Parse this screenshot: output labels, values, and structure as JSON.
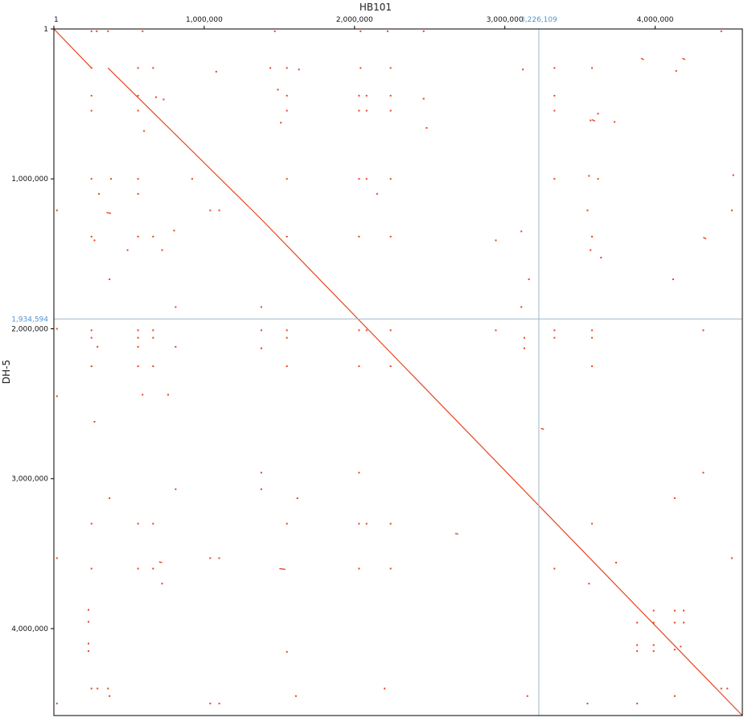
{
  "chart_data": {
    "type": "scatter",
    "subtype": "genome-dotplot",
    "xlabel": "HB101",
    "ylabel": "DH-5",
    "xlim": [
      1,
      4580000
    ],
    "ylim": [
      1,
      4580000
    ],
    "x_ticks": [
      {
        "value": 1,
        "label": "1"
      },
      {
        "value": 1000000,
        "label": "1,000,000"
      },
      {
        "value": 2000000,
        "label": "2,000,000"
      },
      {
        "value": 3000000,
        "label": "3,000,000"
      },
      {
        "value": 4000000,
        "label": "4,000,000"
      }
    ],
    "y_ticks": [
      {
        "value": 1,
        "label": "1"
      },
      {
        "value": 1000000,
        "label": "1,000,000"
      },
      {
        "value": 2000000,
        "label": "2,000,000"
      },
      {
        "value": 3000000,
        "label": "3,000,000"
      },
      {
        "value": 4000000,
        "label": "4,000,000"
      }
    ],
    "cursor": {
      "x": 3226109,
      "y": 1934594,
      "x_label": "3,226,109",
      "y_label": "1,934,594"
    },
    "grid": false,
    "colors": {
      "match": "#e8431f",
      "cursor": "#9fb7c9",
      "cursor_label": "#4f95cf",
      "frame": "#000000"
    },
    "diagonal_segments": [
      [
        0,
        0,
        250000,
        260000
      ],
      [
        360000,
        260000,
        1300000,
        1190000
      ],
      [
        1300000,
        1190000,
        1400000,
        1290000
      ],
      [
        1400000,
        1290000,
        4580000,
        4580000
      ]
    ],
    "short_segments": [
      [
        350000,
        1225000,
        380000,
        1230000
      ],
      [
        3580000,
        605000,
        3600000,
        615000
      ],
      [
        4320000,
        1390000,
        4340000,
        1400000
      ],
      [
        3240000,
        2665000,
        3260000,
        2670000
      ],
      [
        2670000,
        3365000,
        2690000,
        3370000
      ],
      [
        700000,
        3555000,
        720000,
        3560000
      ],
      [
        3905000,
        195000,
        3925000,
        205000
      ],
      [
        4180000,
        195000,
        4200000,
        205000
      ],
      [
        1500000,
        3600000,
        1540000,
        3605000
      ]
    ],
    "points": [
      [
        250000,
        15000
      ],
      [
        285000,
        15000
      ],
      [
        360000,
        15000
      ],
      [
        590000,
        15000
      ],
      [
        1470000,
        15000
      ],
      [
        2040000,
        15000
      ],
      [
        2220000,
        15000
      ],
      [
        2460000,
        15000
      ],
      [
        4440000,
        15000
      ],
      [
        250000,
        260000
      ],
      [
        560000,
        260000
      ],
      [
        660000,
        260000
      ],
      [
        1440000,
        260000
      ],
      [
        1550000,
        260000
      ],
      [
        1630000,
        270000
      ],
      [
        2040000,
        260000
      ],
      [
        2240000,
        260000
      ],
      [
        3330000,
        260000
      ],
      [
        3580000,
        260000
      ],
      [
        3120000,
        270000
      ],
      [
        1080000,
        285000
      ],
      [
        4140000,
        280000
      ],
      [
        250000,
        445000
      ],
      [
        560000,
        445000
      ],
      [
        1550000,
        445000
      ],
      [
        2030000,
        445000
      ],
      [
        2080000,
        445000
      ],
      [
        2240000,
        445000
      ],
      [
        2460000,
        465000
      ],
      [
        3330000,
        445000
      ],
      [
        730000,
        470000
      ],
      [
        1490000,
        405000
      ],
      [
        680000,
        455000
      ],
      [
        250000,
        545000
      ],
      [
        560000,
        545000
      ],
      [
        1550000,
        545000
      ],
      [
        2030000,
        545000
      ],
      [
        2080000,
        545000
      ],
      [
        2240000,
        545000
      ],
      [
        3330000,
        545000
      ],
      [
        3620000,
        565000
      ],
      [
        3570000,
        610000
      ],
      [
        3730000,
        620000
      ],
      [
        1510000,
        625000
      ],
      [
        600000,
        680000
      ],
      [
        2480000,
        660000
      ],
      [
        250000,
        1000000
      ],
      [
        380000,
        1000000
      ],
      [
        560000,
        1000000
      ],
      [
        920000,
        1000000
      ],
      [
        1550000,
        1000000
      ],
      [
        2030000,
        1000000
      ],
      [
        2080000,
        1000000
      ],
      [
        2240000,
        1000000
      ],
      [
        3330000,
        1000000
      ],
      [
        3560000,
        980000
      ],
      [
        3620000,
        1000000
      ],
      [
        4520000,
        975000
      ],
      [
        300000,
        1100000
      ],
      [
        560000,
        1100000
      ],
      [
        2150000,
        1100000
      ],
      [
        1040000,
        1210000
      ],
      [
        1100000,
        1210000
      ],
      [
        3550000,
        1210000
      ],
      [
        4510000,
        1210000
      ],
      [
        20000,
        1210000
      ],
      [
        250000,
        1385000
      ],
      [
        560000,
        1385000
      ],
      [
        660000,
        1385000
      ],
      [
        1550000,
        1385000
      ],
      [
        2030000,
        1385000
      ],
      [
        2240000,
        1385000
      ],
      [
        3110000,
        1350000
      ],
      [
        3580000,
        1385000
      ],
      [
        270000,
        1410000
      ],
      [
        800000,
        1345000
      ],
      [
        490000,
        1475000
      ],
      [
        720000,
        1475000
      ],
      [
        3570000,
        1475000
      ],
      [
        3640000,
        1525000
      ],
      [
        2940000,
        1410000
      ],
      [
        3160000,
        1670000
      ],
      [
        4120000,
        1670000
      ],
      [
        370000,
        1670000
      ],
      [
        810000,
        1855000
      ],
      [
        1380000,
        1855000
      ],
      [
        3110000,
        1855000
      ],
      [
        20000,
        2000000
      ],
      [
        250000,
        2010000
      ],
      [
        560000,
        2010000
      ],
      [
        660000,
        2010000
      ],
      [
        1380000,
        2010000
      ],
      [
        1550000,
        2010000
      ],
      [
        2030000,
        2010000
      ],
      [
        2080000,
        2010000
      ],
      [
        2240000,
        2010000
      ],
      [
        3330000,
        2010000
      ],
      [
        3580000,
        2010000
      ],
      [
        4320000,
        2010000
      ],
      [
        2940000,
        2010000
      ],
      [
        250000,
        2060000
      ],
      [
        560000,
        2060000
      ],
      [
        660000,
        2060000
      ],
      [
        1550000,
        2060000
      ],
      [
        3330000,
        2060000
      ],
      [
        3580000,
        2060000
      ],
      [
        3130000,
        2060000
      ],
      [
        290000,
        2120000
      ],
      [
        560000,
        2120000
      ],
      [
        810000,
        2120000
      ],
      [
        1380000,
        2130000
      ],
      [
        3130000,
        2130000
      ],
      [
        250000,
        2250000
      ],
      [
        560000,
        2250000
      ],
      [
        660000,
        2250000
      ],
      [
        1550000,
        2250000
      ],
      [
        2030000,
        2250000
      ],
      [
        2240000,
        2250000
      ],
      [
        3580000,
        2250000
      ],
      [
        20000,
        2450000
      ],
      [
        590000,
        2440000
      ],
      [
        760000,
        2440000
      ],
      [
        270000,
        2620000
      ],
      [
        1380000,
        2960000
      ],
      [
        2030000,
        2960000
      ],
      [
        4320000,
        2960000
      ],
      [
        370000,
        3130000
      ],
      [
        810000,
        3070000
      ],
      [
        1380000,
        3070000
      ],
      [
        1620000,
        3130000
      ],
      [
        4130000,
        3130000
      ],
      [
        250000,
        3300000
      ],
      [
        560000,
        3300000
      ],
      [
        660000,
        3300000
      ],
      [
        1550000,
        3300000
      ],
      [
        2030000,
        3300000
      ],
      [
        2080000,
        3300000
      ],
      [
        2240000,
        3300000
      ],
      [
        3580000,
        3300000
      ],
      [
        20000,
        3530000
      ],
      [
        1040000,
        3530000
      ],
      [
        1100000,
        3530000
      ],
      [
        4510000,
        3530000
      ],
      [
        3740000,
        3560000
      ],
      [
        250000,
        3600000
      ],
      [
        560000,
        3600000
      ],
      [
        660000,
        3600000
      ],
      [
        2030000,
        3600000
      ],
      [
        2240000,
        3600000
      ],
      [
        3330000,
        3600000
      ],
      [
        720000,
        3700000
      ],
      [
        3560000,
        3700000
      ],
      [
        230000,
        3875000
      ],
      [
        230000,
        3955000
      ],
      [
        230000,
        4100000
      ],
      [
        230000,
        4150000
      ],
      [
        1550000,
        4155000
      ],
      [
        3990000,
        3880000
      ],
      [
        4130000,
        3880000
      ],
      [
        4190000,
        3880000
      ],
      [
        3880000,
        3960000
      ],
      [
        3990000,
        3960000
      ],
      [
        4130000,
        3960000
      ],
      [
        4190000,
        3960000
      ],
      [
        3880000,
        4110000
      ],
      [
        3990000,
        4110000
      ],
      [
        4130000,
        4140000
      ],
      [
        4170000,
        4120000
      ],
      [
        3880000,
        4150000
      ],
      [
        3990000,
        4150000
      ],
      [
        250000,
        4400000
      ],
      [
        290000,
        4400000
      ],
      [
        360000,
        4400000
      ],
      [
        2200000,
        4400000
      ],
      [
        4440000,
        4400000
      ],
      [
        4480000,
        4400000
      ],
      [
        370000,
        4450000
      ],
      [
        1610000,
        4450000
      ],
      [
        3150000,
        4450000
      ],
      [
        4130000,
        4450000
      ],
      [
        20000,
        4500000
      ],
      [
        1040000,
        4500000
      ],
      [
        1100000,
        4500000
      ],
      [
        3550000,
        4500000
      ],
      [
        3880000,
        4500000
      ]
    ]
  }
}
